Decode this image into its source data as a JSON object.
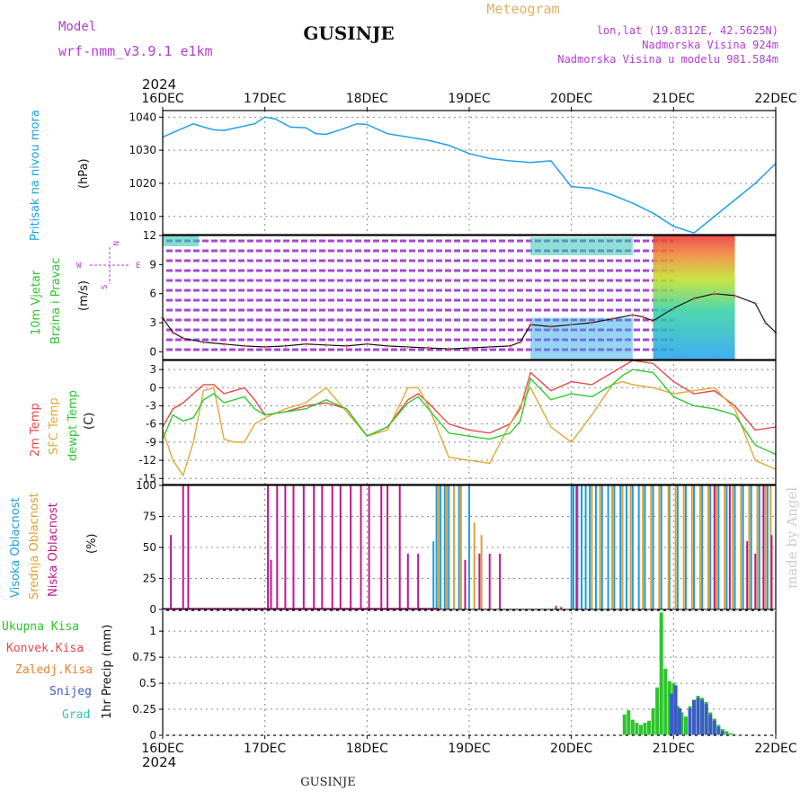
{
  "header": {
    "model_label": "Model",
    "model_name": "wrf-nmm_v3.9.1  e1km",
    "location": "GUSINJE",
    "meteogram": "Meteogram",
    "lonlat": "lon,lat (19.8312E, 42.5625N)",
    "elevation": "Nadmorska Visina 924m",
    "model_elevation": "Nadmorska Visina u modelu 981.584m",
    "year_top": "2024",
    "year_bottom": "2024",
    "footer": "GUSINJE",
    "credit": "made by Angel"
  },
  "colors": {
    "pressure": "#1ea0e6",
    "temp2m": "#e84848",
    "sfc": "#e0a838",
    "dewpt": "#30c830",
    "wind_main": "#9a28d0",
    "cloud_high": "#1e9ee0",
    "cloud_mid": "#e0a030",
    "cloud_low": "#c01890",
    "precip_total": "#2cc52c",
    "precip_snow": "#3c5cc8",
    "precip_freezing": "#f08030",
    "grid": "#888888",
    "label_purple": "#b040d0"
  },
  "x_ticks": [
    "16DEC",
    "17DEC",
    "18DEC",
    "19DEC",
    "20DEC",
    "21DEC",
    "22DEC"
  ],
  "panels": {
    "pressure": {
      "title": "Pritisak na nivou mora",
      "unit": "(hPa)",
      "ticks": [
        "1010",
        "1020",
        "1030",
        "1040"
      ]
    },
    "wind": {
      "title": "10m Vjetar",
      "title2": "Brzina i Pravac",
      "unit": "(m/s)",
      "ticks": [
        "0",
        "3",
        "6",
        "9",
        "12"
      ],
      "compass": {
        "w": "W",
        "e": "E",
        "n": "N",
        "s": "S"
      }
    },
    "temp": {
      "label_2m": "2m Temp",
      "label_sfc": "SFC Temp",
      "label_dew": "dewpt Temp",
      "unit": "(C)",
      "ticks": [
        "3",
        "0",
        "-3",
        "-6",
        "-9",
        "-12",
        "-15"
      ]
    },
    "cloud": {
      "label_high": "Visoka Oblacnost",
      "label_mid": "Srednja Oblacnost",
      "label_low": "Niska Oblacnost",
      "unit": "(%)",
      "ticks": [
        "0",
        "25",
        "50",
        "75",
        "100"
      ]
    },
    "precip": {
      "label_total": "Ukupna Kisa",
      "label_conv": "Konvek.Kisa",
      "label_freezing": "Zaledj.Kisa",
      "label_snow": "Snijeg",
      "label_hail": "Grad",
      "unit": "1hr Precip (mm)",
      "ticks": [
        "0",
        "0.25",
        "0.5",
        "0.75",
        "1"
      ]
    }
  },
  "chart_data": [
    {
      "type": "line",
      "ylabel": "Pritisak na nivou mora (hPa)",
      "ylim": [
        1004.5,
        1042
      ],
      "x_unit": "days since 16DEC 00",
      "series": [
        {
          "name": "Pritisak na nivou mora",
          "x": [
            0,
            0.15,
            0.3,
            0.4,
            0.5,
            0.6,
            0.75,
            0.9,
            1.0,
            1.1,
            1.25,
            1.4,
            1.5,
            1.6,
            1.75,
            1.9,
            2.0,
            2.2,
            2.4,
            2.6,
            2.8,
            3.0,
            3.2,
            3.4,
            3.6,
            3.8,
            4.0,
            4.2,
            4.4,
            4.6,
            4.8,
            5.0,
            5.2,
            5.4,
            5.6,
            5.8,
            6.0
          ],
          "y": [
            1034,
            1036,
            1038,
            1037,
            1036.2,
            1036,
            1037,
            1038,
            1040,
            1039.5,
            1037,
            1036.8,
            1035,
            1034.8,
            1036.3,
            1038,
            1037.8,
            1035,
            1034,
            1033,
            1031.5,
            1029,
            1027.5,
            1026.8,
            1026.3,
            1026.8,
            1019,
            1018.5,
            1016.5,
            1014,
            1011,
            1007,
            1005,
            1010,
            1015,
            1020,
            1026
          ]
        }
      ]
    },
    {
      "type": "line",
      "ylabel": "10m Vjetar Brzina i Pravac (m/s)",
      "ylim": [
        -0.8,
        12
      ],
      "series": [
        {
          "name": "10m Vjetar",
          "x": [
            0,
            0.1,
            0.2,
            0.4,
            0.6,
            0.8,
            1.0,
            1.2,
            1.4,
            1.6,
            1.8,
            2.0,
            2.2,
            2.4,
            2.6,
            2.8,
            3.0,
            3.2,
            3.4,
            3.5,
            3.6,
            3.8,
            4.0,
            4.2,
            4.4,
            4.6,
            4.7,
            4.8,
            5.0,
            5.2,
            5.4,
            5.6,
            5.8,
            5.9,
            6.0
          ],
          "y": [
            3.5,
            2.0,
            1.4,
            1.0,
            0.8,
            0.6,
            0.5,
            0.6,
            0.8,
            0.7,
            0.6,
            0.8,
            0.6,
            0.5,
            0.4,
            0.3,
            0.4,
            0.5,
            0.6,
            1.0,
            2.8,
            2.6,
            2.8,
            3.0,
            3.4,
            3.8,
            3.6,
            3.2,
            4.5,
            5.5,
            6.0,
            5.8,
            5.0,
            3.0,
            2.0
          ]
        }
      ]
    },
    {
      "type": "line",
      "ylabel": "(C)",
      "ylim": [
        -16,
        4.5
      ],
      "x": [
        0,
        0.1,
        0.2,
        0.3,
        0.4,
        0.5,
        0.6,
        0.7,
        0.8,
        0.9,
        1.0,
        1.2,
        1.4,
        1.6,
        1.8,
        2.0,
        2.2,
        2.4,
        2.5,
        2.6,
        2.8,
        3.0,
        3.2,
        3.4,
        3.5,
        3.6,
        3.8,
        4.0,
        4.2,
        4.4,
        4.5,
        4.6,
        4.8,
        5.0,
        5.2,
        5.4,
        5.6,
        5.8,
        6.0
      ],
      "series": [
        {
          "name": "2m Temp",
          "y": [
            -6.5,
            -3.5,
            -2.5,
            -1.0,
            0.5,
            0.5,
            -1.0,
            -0.5,
            0.0,
            -2.0,
            -4.5,
            -4.0,
            -3.0,
            -2.5,
            -3.5,
            -8.0,
            -6.5,
            -2.0,
            -1.0,
            -2.5,
            -6.0,
            -7.0,
            -7.5,
            -6.0,
            -3.5,
            2.5,
            -0.5,
            1.0,
            0.5,
            2.5,
            3.5,
            4.5,
            4.0,
            1.0,
            -1.0,
            -0.5,
            -3.0,
            -7.0,
            -6.5
          ]
        },
        {
          "name": "SFC Temp",
          "y": [
            -7.0,
            -12.0,
            -14.5,
            -9.0,
            -0.5,
            0.0,
            -8.5,
            -9.0,
            -9.0,
            -6.0,
            -5.0,
            -3.5,
            -2.5,
            0.0,
            -4.0,
            -8.0,
            -7.0,
            0.0,
            0.0,
            -3.0,
            -11.5,
            -12.0,
            -12.5,
            -6.0,
            -3.0,
            0.0,
            -6.5,
            -9.0,
            -4.5,
            0.5,
            1.0,
            0.5,
            0.0,
            -1.0,
            -0.5,
            0.0,
            -3.5,
            -12.0,
            -13.5
          ]
        },
        {
          "name": "dewpt Temp",
          "y": [
            -8.5,
            -4.5,
            -5.5,
            -5.0,
            -2.0,
            -1.0,
            -2.5,
            -2.0,
            -1.5,
            -3.5,
            -4.5,
            -4.0,
            -3.5,
            -2.0,
            -3.5,
            -8.0,
            -6.5,
            -2.5,
            -1.5,
            -3.5,
            -7.5,
            -8.0,
            -8.5,
            -7.5,
            -5.5,
            1.5,
            -2.0,
            -1.0,
            -1.5,
            0.5,
            2.0,
            3.0,
            2.5,
            -1.5,
            -3.0,
            -3.5,
            -4.5,
            -9.5,
            -11.0
          ]
        }
      ]
    },
    {
      "type": "bar",
      "ylabel": "(%)",
      "ylim": [
        0,
        100
      ],
      "series": [
        {
          "name": "Visoka Oblacnost",
          "x": [
            2.65,
            2.68,
            2.72,
            2.76,
            2.8,
            2.9,
            3.0,
            4.0,
            4.02,
            4.06,
            4.1,
            4.14,
            4.18,
            4.24,
            4.3,
            4.36,
            4.42,
            4.48,
            4.54,
            4.6,
            4.66,
            4.72,
            4.8,
            4.88,
            4.96,
            5.04,
            5.12,
            5.2,
            5.28,
            5.36,
            5.44,
            5.52,
            5.6,
            5.68,
            5.76,
            5.84,
            5.92
          ],
          "values": [
            55,
            100,
            100,
            100,
            100,
            100,
            100,
            100,
            100,
            100,
            100,
            100,
            100,
            100,
            100,
            100,
            100,
            100,
            100,
            100,
            100,
            100,
            100,
            100,
            100,
            100,
            100,
            100,
            100,
            100,
            100,
            100,
            100,
            100,
            100,
            100,
            100
          ]
        },
        {
          "name": "Srednja Oblacnost",
          "x": [
            2.7,
            2.78,
            2.85,
            2.92,
            3.05,
            3.12,
            4.2,
            4.28,
            4.4,
            4.5,
            4.58,
            4.7,
            4.78,
            4.86,
            4.95,
            5.02,
            5.1,
            5.18,
            5.26,
            5.34,
            5.42,
            5.5,
            5.58,
            5.66,
            5.74,
            5.82,
            5.9,
            5.95
          ],
          "values": [
            100,
            100,
            100,
            100,
            70,
            60,
            100,
            100,
            100,
            100,
            100,
            100,
            100,
            100,
            100,
            100,
            100,
            100,
            100,
            100,
            100,
            100,
            100,
            100,
            100,
            100,
            100,
            100
          ]
        },
        {
          "name": "Niska Oblacnost",
          "x": [
            0.08,
            0.2,
            0.25,
            1.03,
            1.06,
            1.12,
            1.2,
            1.28,
            1.38,
            1.48,
            1.56,
            1.66,
            1.74,
            1.84,
            1.94,
            2.02,
            2.14,
            2.2,
            2.32,
            2.4,
            2.5,
            2.96,
            3.1,
            3.2,
            3.3,
            3.85,
            3.9,
            4.05,
            5.4,
            5.55,
            5.72,
            5.8,
            5.88,
            5.96
          ],
          "values": [
            60,
            100,
            100,
            100,
            40,
            100,
            100,
            100,
            100,
            100,
            100,
            100,
            100,
            100,
            100,
            100,
            100,
            100,
            100,
            45,
            45,
            40,
            45,
            45,
            45,
            3,
            2,
            100,
            100,
            100,
            55,
            45,
            100,
            60
          ]
        }
      ]
    },
    {
      "type": "bar",
      "ylabel": "1hr Precip (mm)",
      "ylim": [
        0,
        1.2
      ],
      "series": [
        {
          "name": "Ukupna Kisa",
          "x": [
            4.52,
            4.56,
            4.6,
            4.64,
            4.68,
            4.72,
            4.76,
            4.8,
            4.84,
            4.88,
            4.92,
            4.96,
            5.0,
            5.04,
            5.08,
            5.12,
            5.16,
            5.2,
            5.24,
            5.28,
            5.32,
            5.36,
            5.4,
            5.44,
            5.48,
            5.52,
            5.56,
            5.6
          ],
          "values": [
            0.2,
            0.24,
            0.15,
            0.12,
            0.1,
            0.12,
            0.14,
            0.26,
            0.46,
            1.18,
            0.64,
            0.52,
            0.5,
            0.28,
            0.22,
            0.18,
            0.28,
            0.34,
            0.38,
            0.36,
            0.32,
            0.22,
            0.16,
            0.1,
            0.06,
            0.04,
            0.02,
            0.01
          ]
        },
        {
          "name": "Snijeg",
          "x": [
            4.98,
            5.02,
            5.06,
            5.16,
            5.2,
            5.24,
            5.28,
            5.32,
            5.36,
            5.4,
            5.44,
            5.48
          ],
          "values": [
            0.4,
            0.48,
            0.26,
            0.26,
            0.34,
            0.36,
            0.34,
            0.3,
            0.2,
            0.14,
            0.08,
            0.04
          ]
        }
      ]
    }
  ]
}
